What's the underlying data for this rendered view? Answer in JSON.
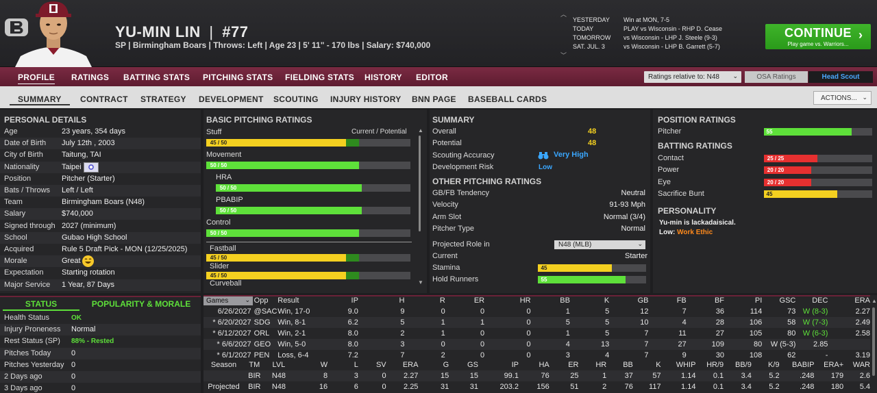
{
  "header": {
    "name": "YU-MIN LIN",
    "sep": "|",
    "number": "#77",
    "info": "SP | Birmingham Boars | Throws: Left | Age 23 | 5' 11\" - 170 lbs | Salary: $740,000",
    "schedule": [
      {
        "day": "YESTERDAY",
        "game": "Win at MON, 7-5"
      },
      {
        "day": "TODAY",
        "game": "PLAY vs Wisconsin - RHP D. Cease"
      },
      {
        "day": "TOMORROW",
        "game": "vs Wisconsin - LHP J. Steele (9-3)"
      },
      {
        "day": "SAT. JUL. 3",
        "game": "vs Wisconsin - LHP B. Garrett (5-7)"
      }
    ],
    "continue_label": "CONTINUE",
    "continue_sub": "Play game vs. Warriors..."
  },
  "main_tabs": [
    "PROFILE",
    "RATINGS",
    "BATTING STATS",
    "PITCHING STATS",
    "FIELDING STATS",
    "HISTORY",
    "EDITOR"
  ],
  "ratings_relative": "Ratings relative to: N48",
  "osa_ratings": "OSA Ratings",
  "head_scout": "Head Scout",
  "sub_tabs": [
    "SUMMARY",
    "CONTRACT",
    "STRATEGY",
    "DEVELOPMENT",
    "SCOUTING",
    "INJURY HISTORY",
    "BNN PAGE",
    "BASEBALL CARDS"
  ],
  "actions_label": "ACTIONS...",
  "personal": {
    "title": "PERSONAL DETAILS",
    "rows": [
      {
        "label": "Age",
        "value": "23 years, 354 days"
      },
      {
        "label": "Date of Birth",
        "value": "July 12th , 2003"
      },
      {
        "label": "City of Birth",
        "value": "Taitung, TAI"
      },
      {
        "label": "Nationality",
        "value": "Taipei"
      },
      {
        "label": "Position",
        "value": "Pitcher (Starter)"
      },
      {
        "label": "Bats / Throws",
        "value": "Left / Left"
      },
      {
        "label": "Team",
        "value": "Birmingham Boars (N48)"
      },
      {
        "label": "Salary",
        "value": "$740,000"
      },
      {
        "label": "Signed through",
        "value": "2027 (minimum)"
      },
      {
        "label": "School",
        "value": "Gubao High School"
      },
      {
        "label": "Acquired",
        "value": "Rule 5 Draft Pick - MON (12/25/2025)"
      },
      {
        "label": "Morale",
        "value": "Great"
      },
      {
        "label": "Expectation",
        "value": "Starting rotation"
      },
      {
        "label": "Major Service",
        "value": "1 Year, 87 Days"
      }
    ]
  },
  "status": {
    "tab_status": "STATUS",
    "tab_popularity": "POPULARITY & MORALE",
    "rows": [
      {
        "label": "Health Status",
        "value": "OK"
      },
      {
        "label": "Injury Proneness",
        "value": "Normal"
      },
      {
        "label": "Rest Status (SP)",
        "value": "88% - Rested"
      },
      {
        "label": "Pitches Today",
        "value": "0"
      },
      {
        "label": "Pitches Yesterday",
        "value": "0"
      },
      {
        "label": "2 Days ago",
        "value": "0"
      },
      {
        "label": "3 Days ago",
        "value": "0"
      }
    ]
  },
  "basic_pitching": {
    "title": "BASIC PITCHING RATINGS",
    "header_right": "Current / Potential",
    "stuff": {
      "label": "Stuff",
      "text": "45 / 50",
      "current": 45,
      "potential": 50
    },
    "movement": {
      "label": "Movement",
      "text": "50 / 50",
      "current": 50,
      "potential": 50
    },
    "hra": {
      "label": "HRA",
      "text": "50 / 50",
      "current": 50,
      "potential": 50
    },
    "pbabip": {
      "label": "PBABIP",
      "text": "50 / 50",
      "current": 50,
      "potential": 50
    },
    "control": {
      "label": "Control",
      "text": "50 / 50",
      "current": 50,
      "potential": 50
    },
    "fastball": {
      "label": "Fastball",
      "text": "45 / 50",
      "current": 45,
      "potential": 50
    },
    "slider": {
      "label": "Slider",
      "text": "45 / 50",
      "current": 45,
      "potential": 50
    },
    "curveball": {
      "label": "Curveball"
    }
  },
  "summary": {
    "title": "SUMMARY",
    "overall_label": "Overall",
    "overall": "48",
    "potential_label": "Potential",
    "potential": "48",
    "accuracy_label": "Scouting Accuracy",
    "accuracy": "Very High",
    "risk_label": "Development Risk",
    "risk": "Low",
    "other_title": "OTHER PITCHING RATINGS",
    "other": [
      {
        "label": "GB/FB Tendency",
        "value": "Neutral"
      },
      {
        "label": "Velocity",
        "value": "91-93 Mph"
      },
      {
        "label": "Arm Slot",
        "value": "Normal (3/4)"
      },
      {
        "label": "Pitcher Type",
        "value": "Normal"
      }
    ],
    "role_label": "Projected Role in",
    "role_select": "N48 (MLB)",
    "current_label": "Current",
    "current_value": "Starter",
    "stamina_label": "Stamina",
    "stamina": 45,
    "stamina_text": "45",
    "hold_label": "Hold Runners",
    "hold": 55,
    "hold_text": "55"
  },
  "position": {
    "title": "POSITION RATINGS",
    "pitcher_label": "Pitcher",
    "pitcher": 55,
    "pitcher_text": "55",
    "batting_title": "BATTING RATINGS",
    "batting": [
      {
        "label": "Contact",
        "text": "25 / 25",
        "value": 25
      },
      {
        "label": "Power",
        "text": "20 / 20",
        "value": 20
      },
      {
        "label": "Eye",
        "text": "20 / 20",
        "value": 20
      },
      {
        "label": "Sacrifice Bunt",
        "text": "45",
        "value": 45
      }
    ],
    "personality_title": "PERSONALITY",
    "personality_text": "Yu-min is lackadaisical.",
    "low_label": "Low:",
    "low_value": "Work Ethic"
  },
  "games": {
    "select": "Games",
    "headers": [
      "Opp",
      "Result",
      "IP",
      "H",
      "R",
      "ER",
      "HR",
      "BB",
      "K",
      "GB",
      "FB",
      "BF",
      "PI",
      "GSC",
      "DEC",
      "ERA"
    ],
    "rows": [
      {
        "date": "6/26/2027",
        "cells": [
          "@SAC",
          "Win, 17-0",
          "9.0",
          "9",
          "0",
          "0",
          "0",
          "1",
          "5",
          "12",
          "7",
          "36",
          "114",
          "73",
          "W (8-3)",
          "2.27"
        ]
      },
      {
        "date": "* 6/20/2027",
        "cells": [
          "SDG",
          "Win, 8-1",
          "6.2",
          "5",
          "1",
          "1",
          "0",
          "5",
          "5",
          "10",
          "4",
          "28",
          "106",
          "58",
          "W (7-3)",
          "2.49"
        ]
      },
      {
        "date": "* 6/12/2027",
        "cells": [
          "ORL",
          "Win, 2-1",
          "8.0",
          "2",
          "1",
          "0",
          "0",
          "1",
          "5",
          "7",
          "11",
          "27",
          "105",
          "80",
          "W (6-3)",
          "2.58"
        ]
      },
      {
        "date": "* 6/6/2027",
        "cells": [
          "GEO",
          "Win, 5-0",
          "8.0",
          "3",
          "0",
          "0",
          "0",
          "4",
          "13",
          "7",
          "27",
          "109",
          "80",
          "W (5-3)",
          "2.85",
          ""
        ]
      },
      {
        "date": "* 6/1/2027",
        "cells": [
          "PEN",
          "Loss, 6-4",
          "7.2",
          "7",
          "2",
          "0",
          "0",
          "3",
          "4",
          "7",
          "9",
          "30",
          "108",
          "62",
          "-",
          "3.19"
        ]
      }
    ]
  },
  "season": {
    "headers": [
      "Season",
      "TM",
      "LVL",
      "W",
      "L",
      "SV",
      "ERA",
      "G",
      "GS",
      "IP",
      "HA",
      "ER",
      "HR",
      "BB",
      "K",
      "WHIP",
      "HR/9",
      "BB/9",
      "K/9",
      "BABIP",
      "ERA+",
      "WAR"
    ],
    "rows": [
      [
        "",
        "BIR",
        "N48",
        "8",
        "3",
        "0",
        "2.27",
        "15",
        "15",
        "99.1",
        "76",
        "25",
        "1",
        "37",
        "57",
        "1.14",
        "0.1",
        "3.4",
        "5.2",
        ".248",
        "179",
        "2.6"
      ],
      [
        "Projected",
        "BIR",
        "N48",
        "16",
        "6",
        "0",
        "2.25",
        "31",
        "31",
        "203.2",
        "156",
        "51",
        "2",
        "76",
        "117",
        "1.14",
        "0.1",
        "3.4",
        "5.2",
        ".248",
        "180",
        "5.4"
      ]
    ]
  },
  "colors": {
    "maroon": "#6b2238",
    "green": "#5ee03a",
    "yellow": "#f4d020",
    "red": "#e63030",
    "blue": "#3aa7ff",
    "orange": "#ff8a1c"
  }
}
